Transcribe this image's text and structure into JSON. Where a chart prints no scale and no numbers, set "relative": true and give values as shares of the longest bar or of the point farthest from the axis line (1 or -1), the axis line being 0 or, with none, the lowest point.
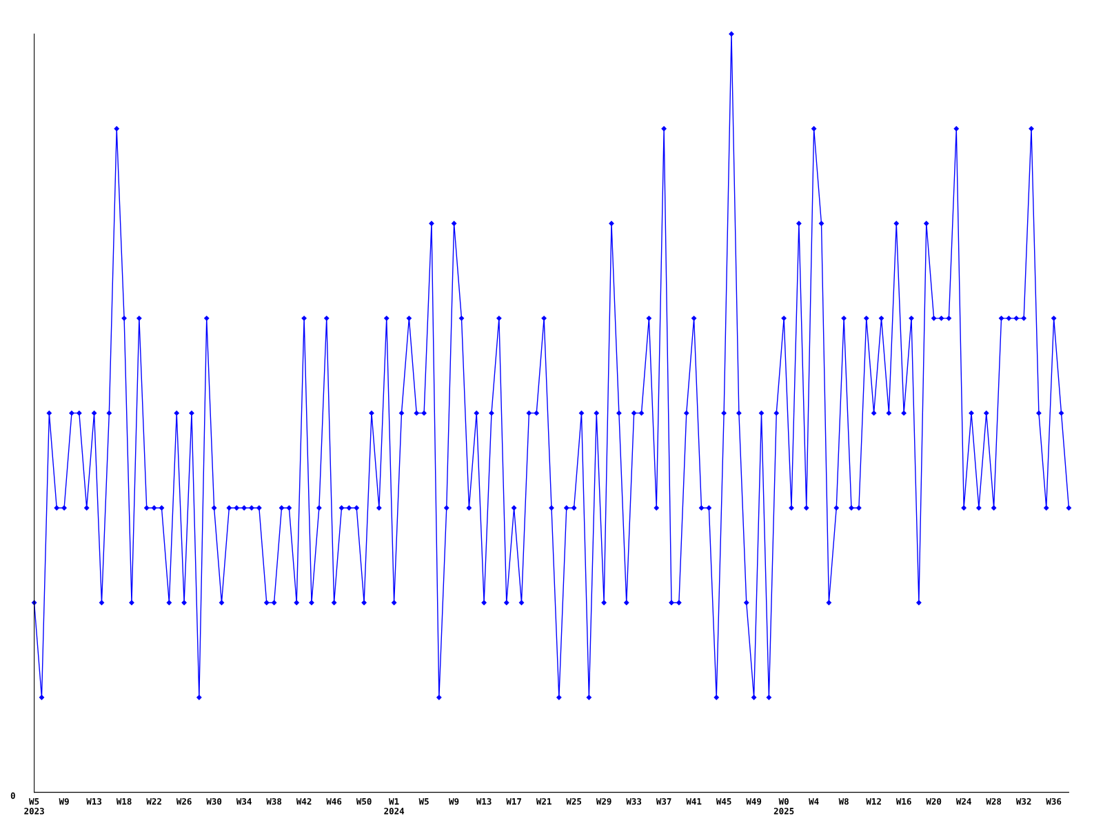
{
  "chart_data": {
    "type": "line",
    "relative": true,
    "color": "#0000ff",
    "marker": "diamond",
    "line_style": "solid",
    "grid": false,
    "legend": false,
    "annotations": [
      "0"
    ],
    "categories": [
      "W5\n2023",
      null,
      null,
      null,
      "W9",
      null,
      null,
      null,
      "W13",
      null,
      null,
      null,
      "W18",
      null,
      null,
      null,
      "W22",
      null,
      null,
      null,
      "W26",
      null,
      null,
      null,
      "W30",
      null,
      null,
      null,
      "W34",
      null,
      null,
      null,
      "W38",
      null,
      null,
      null,
      "W42",
      null,
      null,
      null,
      "W46",
      null,
      null,
      null,
      "W50",
      null,
      null,
      null,
      "W1\n2024",
      null,
      null,
      null,
      "W5",
      null,
      null,
      null,
      "W9",
      null,
      null,
      null,
      "W13",
      null,
      null,
      null,
      "W17",
      null,
      null,
      null,
      "W21",
      null,
      null,
      null,
      "W25",
      null,
      null,
      null,
      "W29",
      null,
      null,
      null,
      "W33",
      null,
      null,
      null,
      "W37",
      null,
      null,
      null,
      "W41",
      null,
      null,
      null,
      "W45",
      null,
      null,
      null,
      "W49",
      null,
      null,
      null,
      "W0\n2025",
      null,
      null,
      null,
      "W4",
      null,
      null,
      null,
      "W8",
      null,
      null,
      null,
      "W12",
      null,
      null,
      null,
      "W16",
      null,
      null,
      null,
      "W20",
      null,
      null,
      null,
      "W24",
      null,
      null,
      null,
      "W28",
      null,
      null,
      null,
      "W32",
      null,
      null,
      null,
      "W36",
      null,
      null
    ],
    "values": [
      0.25,
      0.125,
      0.5,
      0.375,
      0.375,
      0.5,
      0.5,
      0.375,
      0.5,
      0.25,
      0.5,
      0.875,
      0.625,
      0.25,
      0.625,
      0.375,
      0.375,
      0.375,
      0.25,
      0.5,
      0.25,
      0.5,
      0.125,
      0.625,
      0.375,
      0.25,
      0.375,
      0.375,
      0.375,
      0.375,
      0.375,
      0.25,
      0.25,
      0.375,
      0.375,
      0.25,
      0.625,
      0.25,
      0.375,
      0.625,
      0.25,
      0.375,
      0.375,
      0.375,
      0.25,
      0.5,
      0.375,
      0.625,
      0.25,
      0.5,
      0.625,
      0.5,
      0.5,
      0.75,
      0.125,
      0.375,
      0.75,
      0.625,
      0.375,
      0.5,
      0.25,
      0.5,
      0.625,
      0.25,
      0.375,
      0.25,
      0.5,
      0.5,
      0.625,
      0.375,
      0.125,
      0.375,
      0.375,
      0.5,
      0.125,
      0.5,
      0.25,
      0.75,
      0.5,
      0.25,
      0.5,
      0.5,
      0.625,
      0.375,
      0.875,
      0.25,
      0.25,
      0.5,
      0.625,
      0.375,
      0.375,
      0.125,
      0.5,
      1,
      0.5,
      0.25,
      0.125,
      0.5,
      0.125,
      0.5,
      0.625,
      0.375,
      0.75,
      0.375,
      0.875,
      0.75,
      0.25,
      0.375,
      0.625,
      0.375,
      0.375,
      0.625,
      0.5,
      0.625,
      0.5,
      0.75,
      0.5,
      0.625,
      0.25,
      0.75,
      0.625,
      0.625,
      0.625,
      0.875,
      0.375,
      0.5,
      0.375,
      0.5,
      0.375,
      0.625,
      0.625,
      0.625,
      0.625,
      0.875,
      0.5,
      0.375,
      0.625,
      0.5,
      0.375
    ]
  }
}
